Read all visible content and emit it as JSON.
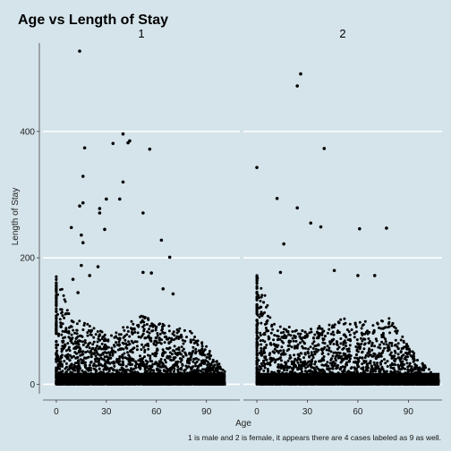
{
  "chart_data": {
    "type": "scatter",
    "title": "Age vs Length of Stay",
    "xlabel": "Age",
    "ylabel": "Length of Stay",
    "caption": "1 is male and 2 is female, it appears there are 4 cases labeled as 9 as well.",
    "xlim": [
      -8,
      110
    ],
    "ylim": [
      -15,
      540
    ],
    "x_ticks": [
      0,
      30,
      60,
      90
    ],
    "x_tick_labels": [
      "0",
      "30",
      "60",
      "90"
    ],
    "y_ticks": [
      0,
      200,
      400
    ],
    "y_tick_labels": [
      "0",
      "200",
      "400"
    ],
    "grid": "horizontal white major lines",
    "facets": [
      {
        "label": "1",
        "outliers": [
          {
            "x": 14,
            "y": 527
          },
          {
            "x": 40,
            "y": 396
          },
          {
            "x": 44,
            "y": 385
          },
          {
            "x": 43,
            "y": 382
          },
          {
            "x": 34,
            "y": 381
          },
          {
            "x": 17,
            "y": 374
          },
          {
            "x": 56,
            "y": 372
          },
          {
            "x": 40,
            "y": 320
          },
          {
            "x": 16,
            "y": 329
          },
          {
            "x": 30,
            "y": 293
          },
          {
            "x": 38,
            "y": 293
          },
          {
            "x": 16,
            "y": 287
          },
          {
            "x": 14,
            "y": 282
          },
          {
            "x": 26,
            "y": 278
          },
          {
            "x": 26,
            "y": 271
          },
          {
            "x": 52,
            "y": 271
          },
          {
            "x": 9,
            "y": 248
          },
          {
            "x": 29,
            "y": 245
          },
          {
            "x": 15,
            "y": 236
          },
          {
            "x": 63,
            "y": 228
          },
          {
            "x": 16,
            "y": 224
          },
          {
            "x": 68,
            "y": 201
          },
          {
            "x": 15,
            "y": 188
          },
          {
            "x": 25,
            "y": 186
          },
          {
            "x": 52,
            "y": 177
          },
          {
            "x": 57,
            "y": 176
          },
          {
            "x": 20,
            "y": 172
          },
          {
            "x": 10,
            "y": 166
          },
          {
            "x": 64,
            "y": 151
          },
          {
            "x": 13,
            "y": 145
          },
          {
            "x": 70,
            "y": 143
          }
        ],
        "bulk_envelope": [
          {
            "x": 0,
            "y": 175
          },
          {
            "x": 10,
            "y": 105
          },
          {
            "x": 20,
            "y": 95
          },
          {
            "x": 30,
            "y": 80
          },
          {
            "x": 40,
            "y": 90
          },
          {
            "x": 50,
            "y": 110
          },
          {
            "x": 60,
            "y": 100
          },
          {
            "x": 70,
            "y": 90
          },
          {
            "x": 80,
            "y": 85
          },
          {
            "x": 90,
            "y": 60
          },
          {
            "x": 100,
            "y": 25
          }
        ],
        "bulk_x_range": [
          0,
          101
        ]
      },
      {
        "label": "2",
        "outliers": [
          {
            "x": 26,
            "y": 491
          },
          {
            "x": 24,
            "y": 472
          },
          {
            "x": 40,
            "y": 373
          },
          {
            "x": 0,
            "y": 343
          },
          {
            "x": 12,
            "y": 294
          },
          {
            "x": 24,
            "y": 279
          },
          {
            "x": 32,
            "y": 255
          },
          {
            "x": 38,
            "y": 249
          },
          {
            "x": 61,
            "y": 246
          },
          {
            "x": 77,
            "y": 247
          },
          {
            "x": 16,
            "y": 222
          },
          {
            "x": 46,
            "y": 180
          },
          {
            "x": 14,
            "y": 177
          },
          {
            "x": 60,
            "y": 172
          },
          {
            "x": 70,
            "y": 172
          }
        ],
        "bulk_envelope": [
          {
            "x": 0,
            "y": 180
          },
          {
            "x": 10,
            "y": 100
          },
          {
            "x": 20,
            "y": 90
          },
          {
            "x": 30,
            "y": 85
          },
          {
            "x": 40,
            "y": 95
          },
          {
            "x": 50,
            "y": 105
          },
          {
            "x": 60,
            "y": 100
          },
          {
            "x": 70,
            "y": 100
          },
          {
            "x": 80,
            "y": 110
          },
          {
            "x": 90,
            "y": 60
          },
          {
            "x": 100,
            "y": 30
          },
          {
            "x": 108,
            "y": 8
          }
        ],
        "bulk_x_range": [
          0,
          108
        ]
      }
    ]
  }
}
